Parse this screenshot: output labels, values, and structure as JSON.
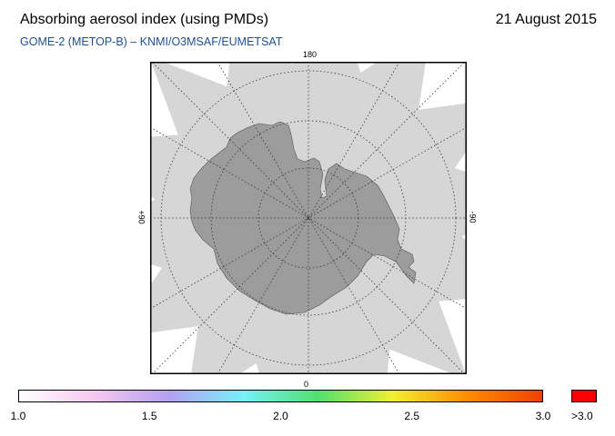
{
  "header": {
    "title": "Absorbing aerosol index (using PMDs)",
    "date": "21 August 2015",
    "subtitle": "GOME-2 (METOP-B)  –   KNMI/O3MSAF/EUMETSAT"
  },
  "map": {
    "projection": "south-polar-stereographic",
    "longitude_labels": {
      "top": "180",
      "bottom": "0",
      "left": "+90",
      "right": "-90"
    },
    "colors": {
      "frame": "#000000",
      "gap": "#ffffff",
      "swath": "#d6d6d6",
      "continent": "#9c9c9c",
      "pole": "#8f8f8f",
      "graticule": "#333333"
    }
  },
  "colorbar": {
    "min": 1.0,
    "max": 3.0,
    "tick_labels": [
      "1.0",
      "1.5",
      "2.0",
      "2.5",
      "3.0"
    ],
    "over_label": ">3.0",
    "over_color": "#ff0000",
    "gradient_stops": [
      "#ffffff",
      "#f5c8f0",
      "#b4a0f0",
      "#78f0f8",
      "#50e070",
      "#f0f030",
      "#ff8c00",
      "#f04000"
    ]
  }
}
